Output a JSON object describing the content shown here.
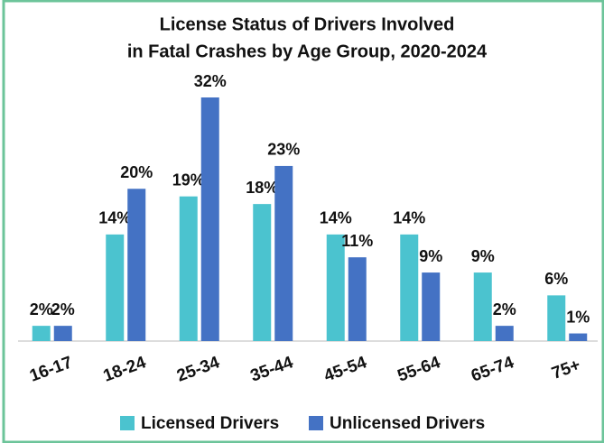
{
  "chart_data": {
    "type": "bar",
    "title": [
      "License Status of Drivers Involved",
      "in Fatal Crashes by Age Group, 2020-2024"
    ],
    "categories": [
      "16-17",
      "18-24",
      "25-34",
      "35-44",
      "45-54",
      "55-64",
      "65-74",
      "75+"
    ],
    "series": [
      {
        "name": "Licensed Drivers",
        "color": "#4bc3cf",
        "values": [
          2,
          14,
          19,
          18,
          14,
          14,
          9,
          6
        ],
        "value_labels": [
          "2%",
          "14%",
          "19%",
          "18%",
          "14%",
          "14%",
          "9%",
          "6%"
        ]
      },
      {
        "name": "Unlicensed Drivers",
        "color": "#4472c4",
        "values": [
          2,
          20,
          32,
          23,
          11,
          9,
          2,
          1
        ],
        "value_labels": [
          "2%",
          "20%",
          "32%",
          "23%",
          "11%",
          "9%",
          "2%",
          "1%"
        ]
      }
    ],
    "legend": "bottom"
  }
}
